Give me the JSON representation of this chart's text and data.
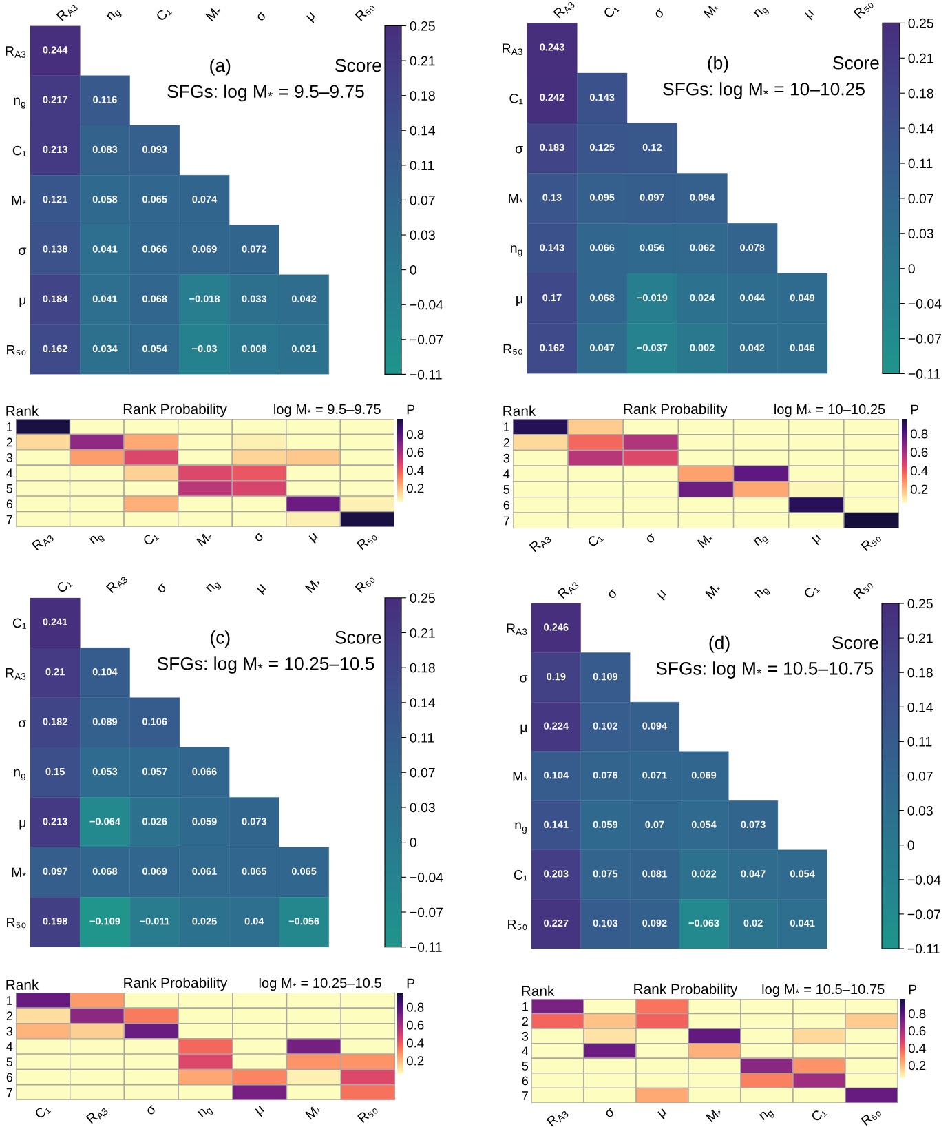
{
  "chart_data": [
    {
      "type": "heatmap",
      "title": "(a)",
      "subtitle": "SFGs: log M$_{*}$ = 9.5–9.75",
      "clabel": "Score",
      "categories": [
        "R$_{A3}$",
        "n$_{g}$",
        "C₁",
        "M$_{*}$",
        "σ",
        "μ",
        "R₅₀"
      ],
      "y_categories": [
        "R$_{A3}$",
        "n$_{g}$",
        "C₁",
        "M$_{*}$",
        "σ",
        "μ",
        "R₅₀"
      ],
      "cells": [
        [
          0.244,
          null,
          null,
          null,
          null,
          null,
          null
        ],
        [
          0.217,
          0.116,
          null,
          null,
          null,
          null,
          null
        ],
        [
          0.213,
          0.083,
          0.093,
          null,
          null,
          null,
          null
        ],
        [
          0.121,
          0.058,
          0.065,
          0.074,
          null,
          null,
          null
        ],
        [
          0.138,
          0.041,
          0.066,
          0.069,
          0.072,
          null,
          null
        ],
        [
          0.184,
          0.041,
          0.068,
          -0.018,
          0.033,
          0.042,
          null
        ],
        [
          0.162,
          0.034,
          0.054,
          -0.03,
          0.008,
          0.021,
          null
        ]
      ],
      "cell_labels": [
        [
          "0.244",
          null,
          null,
          null,
          null,
          null,
          null
        ],
        [
          "0.217",
          "0.116",
          null,
          null,
          null,
          null,
          null
        ],
        [
          "0.213",
          "0.083",
          "0.093",
          null,
          null,
          null,
          null
        ],
        [
          "0.121",
          "0.058",
          "0.065",
          "0.074",
          null,
          null,
          null
        ],
        [
          "0.138",
          "0.041",
          "0.066",
          "0.069",
          "0.072",
          null,
          null
        ],
        [
          "0.184",
          "0.041",
          "0.068",
          "−0.018",
          "0.033",
          "0.042",
          null
        ],
        [
          "0.162",
          "0.034",
          "0.054",
          "−0.03",
          "0.008",
          "0.021",
          null
        ]
      ],
      "clim": [
        -0.11,
        0.25
      ],
      "cticks": [
        {
          "value": -0.11,
          "label": "−0.11"
        },
        {
          "value": -0.074,
          "label": "−0.07"
        },
        {
          "value": -0.038,
          "label": "−0.04"
        },
        {
          "value": -0.002,
          "label": "0"
        },
        {
          "value": 0.034,
          "label": "0.03"
        },
        0.07,
        {
          "value": 0.106,
          "label": "0.11"
        },
        {
          "value": 0.142,
          "label": "0.14"
        },
        {
          "value": 0.178,
          "label": "0.18"
        },
        {
          "value": 0.214,
          "label": "0.21"
        },
        0.25
      ]
    },
    {
      "type": "heatmap",
      "title": "(b)",
      "subtitle": "SFGs: log M$_{*}$ = 10–10.25",
      "clabel": "Score",
      "categories": [
        "R$_{A3}$",
        "C₁",
        "σ",
        "M$_{*}$",
        "n$_{g}$",
        "μ",
        "R₅₀"
      ],
      "y_categories": [
        "R$_{A3}$",
        "C₁",
        "σ",
        "M$_{*}$",
        "n$_{g}$",
        "μ",
        "R₅₀"
      ],
      "cells": [
        [
          0.243,
          null,
          null,
          null,
          null,
          null,
          null
        ],
        [
          0.242,
          0.143,
          null,
          null,
          null,
          null,
          null
        ],
        [
          0.183,
          0.125,
          0.12,
          null,
          null,
          null,
          null
        ],
        [
          0.13,
          0.095,
          0.097,
          0.094,
          null,
          null,
          null
        ],
        [
          0.143,
          0.066,
          0.056,
          0.062,
          0.078,
          null,
          null
        ],
        [
          0.17,
          0.068,
          -0.019,
          0.024,
          0.044,
          0.049,
          null
        ],
        [
          0.162,
          0.047,
          -0.037,
          0.002,
          0.042,
          0.046,
          null
        ]
      ],
      "cell_labels": [
        [
          "0.243",
          null,
          null,
          null,
          null,
          null,
          null
        ],
        [
          "0.242",
          "0.143",
          null,
          null,
          null,
          null,
          null
        ],
        [
          "0.183",
          "0.125",
          "0.12",
          null,
          null,
          null,
          null
        ],
        [
          "0.13",
          "0.095",
          "0.097",
          "0.094",
          null,
          null,
          null
        ],
        [
          "0.143",
          "0.066",
          "0.056",
          "0.062",
          "0.078",
          null,
          null
        ],
        [
          "0.17",
          "0.068",
          "−0.019",
          "0.024",
          "0.044",
          "0.049",
          null
        ],
        [
          "0.162",
          "0.047",
          "−0.037",
          "0.002",
          "0.042",
          "0.046",
          null
        ]
      ],
      "clim": [
        -0.11,
        0.25
      ],
      "cticks": [
        {
          "value": -0.11,
          "label": "−0.11"
        },
        {
          "value": -0.074,
          "label": "−0.07"
        },
        {
          "value": -0.038,
          "label": "−0.04"
        },
        {
          "value": -0.002,
          "label": "0"
        },
        {
          "value": 0.034,
          "label": "0.03"
        },
        0.07,
        {
          "value": 0.106,
          "label": "0.11"
        },
        {
          "value": 0.142,
          "label": "0.14"
        },
        {
          "value": 0.178,
          "label": "0.18"
        },
        {
          "value": 0.214,
          "label": "0.21"
        },
        0.25
      ]
    },
    {
      "type": "heatmap",
      "title": "Rank Probability",
      "subtitle": "log M$_{*}$ = 9.5–9.75",
      "ylabel": "Rank",
      "clabel": "P",
      "categories": [
        "R$_{A3}$",
        "n$_{g}$",
        "C₁",
        "M$_{*}$",
        "σ",
        "μ",
        "R₅₀"
      ],
      "y_categories": [
        "1",
        "2",
        "3",
        "4",
        "5",
        "6",
        "7"
      ],
      "cells": [
        [
          0.95,
          0.05,
          0.05,
          0.05,
          0.05,
          0.05,
          0.05
        ],
        [
          0.13,
          0.66,
          0.24,
          0.05,
          0.08,
          0.05,
          0.05
        ],
        [
          0.05,
          0.26,
          0.47,
          0.05,
          0.14,
          0.17,
          0.05
        ],
        [
          0.05,
          0.05,
          0.15,
          0.46,
          0.42,
          0.05,
          0.05
        ],
        [
          0.05,
          0.05,
          0.05,
          0.55,
          0.48,
          0.05,
          0.05
        ],
        [
          0.05,
          0.05,
          0.22,
          0.05,
          0.05,
          0.75,
          0.08
        ],
        [
          0.05,
          0.05,
          0.05,
          0.05,
          0.05,
          0.08,
          0.95
        ]
      ],
      "clim": [
        0.05,
        0.97
      ],
      "cticks": [
        0.2,
        0.4,
        0.6,
        0.8
      ]
    },
    {
      "type": "heatmap",
      "title": "Rank Probability",
      "subtitle": "log M$_{*}$ = 10–10.25",
      "ylabel": "Rank",
      "clabel": "P",
      "categories": [
        "R$_{A3}$",
        "C₁",
        "σ",
        "M$_{*}$",
        "n$_{g}$",
        "μ",
        "R₅₀"
      ],
      "y_categories": [
        "1",
        "2",
        "3",
        "4",
        "5",
        "6",
        "7"
      ],
      "cells": [
        [
          0.91,
          0.16,
          0.05,
          0.05,
          0.05,
          0.05,
          0.05
        ],
        [
          0.13,
          0.37,
          0.57,
          0.05,
          0.05,
          0.05,
          0.05
        ],
        [
          0.05,
          0.55,
          0.46,
          0.05,
          0.05,
          0.05,
          0.05
        ],
        [
          0.05,
          0.05,
          0.05,
          0.25,
          0.77,
          0.05,
          0.05
        ],
        [
          0.05,
          0.05,
          0.05,
          0.73,
          0.24,
          0.07,
          0.05
        ],
        [
          0.05,
          0.05,
          0.05,
          0.05,
          0.05,
          0.9,
          0.05
        ],
        [
          0.05,
          0.05,
          0.05,
          0.05,
          0.05,
          0.05,
          0.95
        ]
      ],
      "clim": [
        0.05,
        0.96
      ],
      "cticks": [
        0.2,
        0.4,
        0.6,
        0.8
      ]
    },
    {
      "type": "heatmap",
      "title": "(c)",
      "subtitle": "SFGs: log M$_{*}$ = 10.25–10.5",
      "clabel": "Score",
      "categories": [
        "C₁",
        "R$_{A3}$",
        "σ",
        "n$_{g}$",
        "μ",
        "M$_{*}$",
        "R₅₀"
      ],
      "y_categories": [
        "C₁",
        "R$_{A3}$",
        "σ",
        "n$_{g}$",
        "μ",
        "M$_{*}$",
        "R₅₀"
      ],
      "cells": [
        [
          0.241,
          null,
          null,
          null,
          null,
          null,
          null
        ],
        [
          0.21,
          0.104,
          null,
          null,
          null,
          null,
          null
        ],
        [
          0.182,
          0.089,
          0.106,
          null,
          null,
          null,
          null
        ],
        [
          0.15,
          0.053,
          0.057,
          0.066,
          null,
          null,
          null
        ],
        [
          0.213,
          -0.064,
          0.026,
          0.059,
          0.073,
          null,
          null
        ],
        [
          0.097,
          0.068,
          0.069,
          0.061,
          0.065,
          0.065,
          null
        ],
        [
          0.198,
          -0.109,
          -0.011,
          0.025,
          0.04,
          -0.056,
          null
        ]
      ],
      "cell_labels": [
        [
          "0.241",
          null,
          null,
          null,
          null,
          null,
          null
        ],
        [
          "0.21",
          "0.104",
          null,
          null,
          null,
          null,
          null
        ],
        [
          "0.182",
          "0.089",
          "0.106",
          null,
          null,
          null,
          null
        ],
        [
          "0.15",
          "0.053",
          "0.057",
          "0.066",
          null,
          null,
          null
        ],
        [
          "0.213",
          "−0.064",
          "0.026",
          "0.059",
          "0.073",
          null,
          null
        ],
        [
          "0.097",
          "0.068",
          "0.069",
          "0.061",
          "0.065",
          "0.065",
          null
        ],
        [
          "0.198",
          "−0.109",
          "−0.011",
          "0.025",
          "0.04",
          "−0.056",
          null
        ]
      ],
      "clim": [
        -0.11,
        0.25
      ],
      "cticks": [
        {
          "value": -0.11,
          "label": "−0.11"
        },
        {
          "value": -0.074,
          "label": "−0.07"
        },
        {
          "value": -0.038,
          "label": "−0.04"
        },
        {
          "value": -0.002,
          "label": "0"
        },
        {
          "value": 0.034,
          "label": "0.03"
        },
        0.07,
        {
          "value": 0.106,
          "label": "0.11"
        },
        {
          "value": 0.142,
          "label": "0.14"
        },
        {
          "value": 0.178,
          "label": "0.18"
        },
        {
          "value": 0.214,
          "label": "0.21"
        },
        0.25
      ]
    },
    {
      "type": "heatmap",
      "title": "(d)",
      "subtitle": "SFGs: log M$_{*}$ = 10.5–10.75",
      "clabel": "Score",
      "categories": [
        "R$_{A3}$",
        "σ",
        "μ",
        "M$_{*}$",
        "n$_{g}$",
        "C₁",
        "R₅₀"
      ],
      "y_categories": [
        "R$_{A3}$",
        "σ",
        "μ",
        "M$_{*}$",
        "n$_{g}$",
        "C₁",
        "R₅₀"
      ],
      "cells": [
        [
          0.246,
          null,
          null,
          null,
          null,
          null,
          null
        ],
        [
          0.19,
          0.109,
          null,
          null,
          null,
          null,
          null
        ],
        [
          0.224,
          0.102,
          0.094,
          null,
          null,
          null,
          null
        ],
        [
          0.104,
          0.076,
          0.071,
          0.069,
          null,
          null,
          null
        ],
        [
          0.141,
          0.059,
          0.07,
          0.054,
          0.073,
          null,
          null
        ],
        [
          0.203,
          0.075,
          0.081,
          0.022,
          0.047,
          0.054,
          null
        ],
        [
          0.227,
          0.103,
          0.092,
          -0.063,
          0.02,
          0.041,
          null
        ]
      ],
      "cell_labels": [
        [
          "0.246",
          null,
          null,
          null,
          null,
          null,
          null
        ],
        [
          "0.19",
          "0.109",
          null,
          null,
          null,
          null,
          null
        ],
        [
          "0.224",
          "0.102",
          "0.094",
          null,
          null,
          null,
          null
        ],
        [
          "0.104",
          "0.076",
          "0.071",
          "0.069",
          null,
          null,
          null
        ],
        [
          "0.141",
          "0.059",
          "0.07",
          "0.054",
          "0.073",
          null,
          null
        ],
        [
          "0.203",
          "0.075",
          "0.081",
          "0.022",
          "0.047",
          "0.054",
          null
        ],
        [
          "0.227",
          "0.103",
          "0.092",
          "−0.063",
          "0.02",
          "0.041",
          null
        ]
      ],
      "clim": [
        -0.11,
        0.25
      ],
      "cticks": [
        {
          "value": -0.11,
          "label": "−0.11"
        },
        {
          "value": -0.074,
          "label": "−0.07"
        },
        {
          "value": -0.038,
          "label": "−0.04"
        },
        {
          "value": -0.002,
          "label": "0"
        },
        {
          "value": 0.034,
          "label": "0.03"
        },
        0.07,
        {
          "value": 0.106,
          "label": "0.11"
        },
        {
          "value": 0.142,
          "label": "0.14"
        },
        {
          "value": 0.178,
          "label": "0.18"
        },
        {
          "value": 0.214,
          "label": "0.21"
        },
        0.25
      ]
    },
    {
      "type": "heatmap",
      "title": "Rank Probability",
      "subtitle": "log M$_{*}$ = 10.25–10.5",
      "ylabel": "Rank",
      "clabel": "P",
      "categories": [
        "C₁",
        "R$_{A3}$",
        "σ",
        "n$_{g}$",
        "μ",
        "M$_{*}$",
        "R₅₀"
      ],
      "y_categories": [
        "1",
        "2",
        "3",
        "4",
        "5",
        "6",
        "7"
      ],
      "cells": [
        [
          0.75,
          0.26,
          0.05,
          0.05,
          0.05,
          0.05,
          0.05
        ],
        [
          0.12,
          0.66,
          0.33,
          0.05,
          0.05,
          0.05,
          0.05
        ],
        [
          0.21,
          0.15,
          0.74,
          0.05,
          0.05,
          0.05,
          0.05
        ],
        [
          0.05,
          0.05,
          0.05,
          0.37,
          0.05,
          0.72,
          0.05
        ],
        [
          0.05,
          0.05,
          0.05,
          0.46,
          0.05,
          0.28,
          0.28
        ],
        [
          0.05,
          0.05,
          0.05,
          0.24,
          0.31,
          0.08,
          0.46
        ],
        [
          0.05,
          0.05,
          0.05,
          0.05,
          0.71,
          0.05,
          0.35
        ]
      ],
      "clim": [
        0.05,
        0.96
      ],
      "cticks": [
        0.2,
        0.4,
        0.6,
        0.8
      ]
    },
    {
      "type": "heatmap",
      "title": "Rank Probability",
      "subtitle": "log M$_{*}$ = 10.5–10.75",
      "ylabel": "Rank",
      "clabel": "P",
      "categories": [
        "R$_{A3}$",
        "σ",
        "μ",
        "M$_{*}$",
        "n$_{g}$",
        "C₁",
        "R₅₀"
      ],
      "y_categories": [
        "1",
        "2",
        "3",
        "4",
        "5",
        "6",
        "7"
      ],
      "cells": [
        [
          0.71,
          0.05,
          0.35,
          0.05,
          0.05,
          0.05,
          0.05
        ],
        [
          0.38,
          0.18,
          0.39,
          0.05,
          0.05,
          0.05,
          0.16
        ],
        [
          0.05,
          0.11,
          0.05,
          0.77,
          0.05,
          0.13,
          0.05
        ],
        [
          0.05,
          0.74,
          0.05,
          0.22,
          0.05,
          0.05,
          0.05
        ],
        [
          0.05,
          0.05,
          0.05,
          0.05,
          0.67,
          0.28,
          0.05
        ],
        [
          0.05,
          0.05,
          0.05,
          0.05,
          0.32,
          0.62,
          0.05
        ],
        [
          0.05,
          0.05,
          0.24,
          0.05,
          0.05,
          0.05,
          0.76
        ]
      ],
      "clim": [
        0.05,
        0.97
      ],
      "cticks": [
        0.2,
        0.4,
        0.6,
        0.8
      ]
    }
  ]
}
